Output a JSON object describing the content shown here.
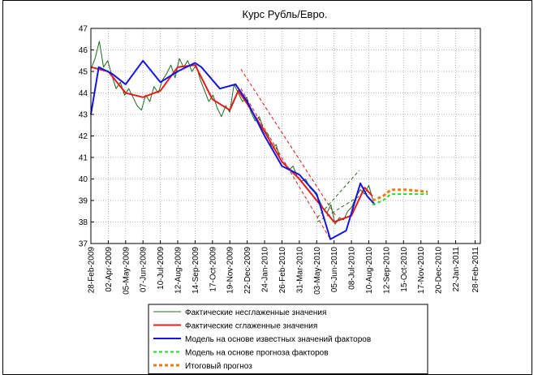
{
  "chart_data": {
    "type": "line",
    "title": "Курс Рубль/Евро.",
    "xlim": [
      0,
      740
    ],
    "ylim": [
      37,
      47
    ],
    "yticks": [
      37,
      38,
      39,
      40,
      41,
      42,
      43,
      44,
      45,
      46,
      47
    ],
    "xticks": [
      {
        "value": 0,
        "label": "28-Feb-2009"
      },
      {
        "value": 33,
        "label": "02-Apr-2009"
      },
      {
        "value": 66,
        "label": "05-May-2009"
      },
      {
        "value": 99,
        "label": "07-Jun-2009"
      },
      {
        "value": 132,
        "label": "10-Jul-2009"
      },
      {
        "value": 165,
        "label": "12-Aug-2009"
      },
      {
        "value": 198,
        "label": "14-Sep-2009"
      },
      {
        "value": 231,
        "label": "17-Oct-2009"
      },
      {
        "value": 264,
        "label": "19-Nov-2009"
      },
      {
        "value": 297,
        "label": "22-Dec-2009"
      },
      {
        "value": 330,
        "label": "24-Jan-2010"
      },
      {
        "value": 363,
        "label": "26-Feb-2010"
      },
      {
        "value": 396,
        "label": "31-Mar-2010"
      },
      {
        "value": 429,
        "label": "03-May-2010"
      },
      {
        "value": 462,
        "label": "05-Jun-2010"
      },
      {
        "value": 495,
        "label": "08-Jul-2010"
      },
      {
        "value": 528,
        "label": "10-Aug-2010"
      },
      {
        "value": 561,
        "label": "12-Sep-2010"
      },
      {
        "value": 594,
        "label": "15-Oct-2010"
      },
      {
        "value": 627,
        "label": "17-Nov-2010"
      },
      {
        "value": 660,
        "label": "20-Dec-2010"
      },
      {
        "value": 693,
        "label": "22-Jan-2011"
      },
      {
        "value": 730,
        "label": "28-Feb-2011"
      }
    ],
    "grid": true,
    "series": [
      {
        "name": "Фактические несглаженные значения",
        "color": "#1e6b1e",
        "linewidth": 1,
        "dashed": false,
        "x": [
          0,
          8,
          16,
          24,
          32,
          40,
          48,
          56,
          64,
          72,
          80,
          88,
          96,
          104,
          112,
          120,
          128,
          136,
          144,
          152,
          160,
          168,
          176,
          184,
          192,
          200,
          208,
          216,
          224,
          232,
          240,
          248,
          256,
          264,
          272,
          280,
          288,
          296,
          304,
          312,
          320,
          328,
          336,
          344,
          352,
          360,
          368,
          376,
          384,
          392,
          400,
          408,
          416,
          424,
          432,
          440,
          448,
          456,
          464,
          472,
          480,
          488,
          496,
          504,
          512,
          520,
          528,
          536
        ],
        "values": [
          45.1,
          45.6,
          46.4,
          45.2,
          45.5,
          44.8,
          44.2,
          44.5,
          43.9,
          44.2,
          43.8,
          43.4,
          43.2,
          43.9,
          43.6,
          44.3,
          44.0,
          44.6,
          44.9,
          45.3,
          44.7,
          45.6,
          45.2,
          45.5,
          45.0,
          45.3,
          44.6,
          44.1,
          43.6,
          43.9,
          43.3,
          42.9,
          43.4,
          43.1,
          44.4,
          44.0,
          43.6,
          43.8,
          43.1,
          42.7,
          42.9,
          42.3,
          42.1,
          41.4,
          41.6,
          40.9,
          40.7,
          40.4,
          40.6,
          40.1,
          39.9,
          40.0,
          39.6,
          39.4,
          39.1,
          38.7,
          38.4,
          38.8,
          37.9,
          38.2,
          38.1,
          38.5,
          38.7,
          39.2,
          39.5,
          39.3,
          39.7,
          39.0
        ]
      },
      {
        "name": "Фактические сглаженные значения",
        "color": "#e8191a",
        "linewidth": 2,
        "dashed": false,
        "x": [
          0,
          33,
          66,
          99,
          132,
          165,
          198,
          231,
          264,
          280,
          297,
          330,
          363,
          396,
          429,
          462,
          495,
          520,
          535
        ],
        "values": [
          45.2,
          45.0,
          44.0,
          43.8,
          44.1,
          45.2,
          45.3,
          43.7,
          43.2,
          44.1,
          43.5,
          42.2,
          40.8,
          40.0,
          39.0,
          38.0,
          38.3,
          39.6,
          39.2
        ]
      },
      {
        "name": "Модель на основе известных значений факторов",
        "color": "#1515e0",
        "linewidth": 2,
        "dashed": false,
        "x": [
          0,
          15,
          40,
          66,
          99,
          132,
          165,
          198,
          210,
          245,
          275,
          297,
          330,
          363,
          396,
          429,
          455,
          485,
          512,
          525,
          540
        ],
        "values": [
          43.0,
          45.2,
          44.9,
          44.4,
          45.5,
          44.5,
          45.0,
          45.4,
          45.2,
          44.2,
          44.4,
          43.6,
          42.0,
          40.6,
          40.2,
          39.3,
          37.2,
          37.6,
          39.8,
          39.2,
          38.8
        ]
      },
      {
        "name": "Модель на основе прогноза факторов",
        "color": "#22dd22",
        "linewidth": 2,
        "dashed": true,
        "x": [
          535,
          555,
          570,
          600,
          640
        ],
        "values": [
          38.8,
          39.0,
          39.3,
          39.3,
          39.3
        ]
      },
      {
        "name": "Итоговый прогноз",
        "color": "#f07a10",
        "linewidth": 3,
        "dashed": true,
        "x": [
          535,
          555,
          570,
          600,
          640
        ],
        "values": [
          39.0,
          39.2,
          39.5,
          39.5,
          39.4
        ]
      },
      {
        "color": "#e8191a",
        "linewidth": 1,
        "dashed": true,
        "x": [
          285,
          465
        ],
        "values": [
          45.1,
          38.3
        ]
      },
      {
        "color": "#e8191a",
        "linewidth": 1,
        "dashed": true,
        "x": [
          285,
          455
        ],
        "values": [
          44.2,
          37.2
        ]
      },
      {
        "color": "#1e6b1e",
        "linewidth": 1,
        "dashed": true,
        "x": [
          430,
          510
        ],
        "values": [
          38.2,
          40.4
        ]
      },
      {
        "color": "#1e6b1e",
        "linewidth": 1,
        "dashed": true,
        "x": [
          430,
          510
        ],
        "values": [
          38.0,
          39.2
        ]
      }
    ]
  }
}
